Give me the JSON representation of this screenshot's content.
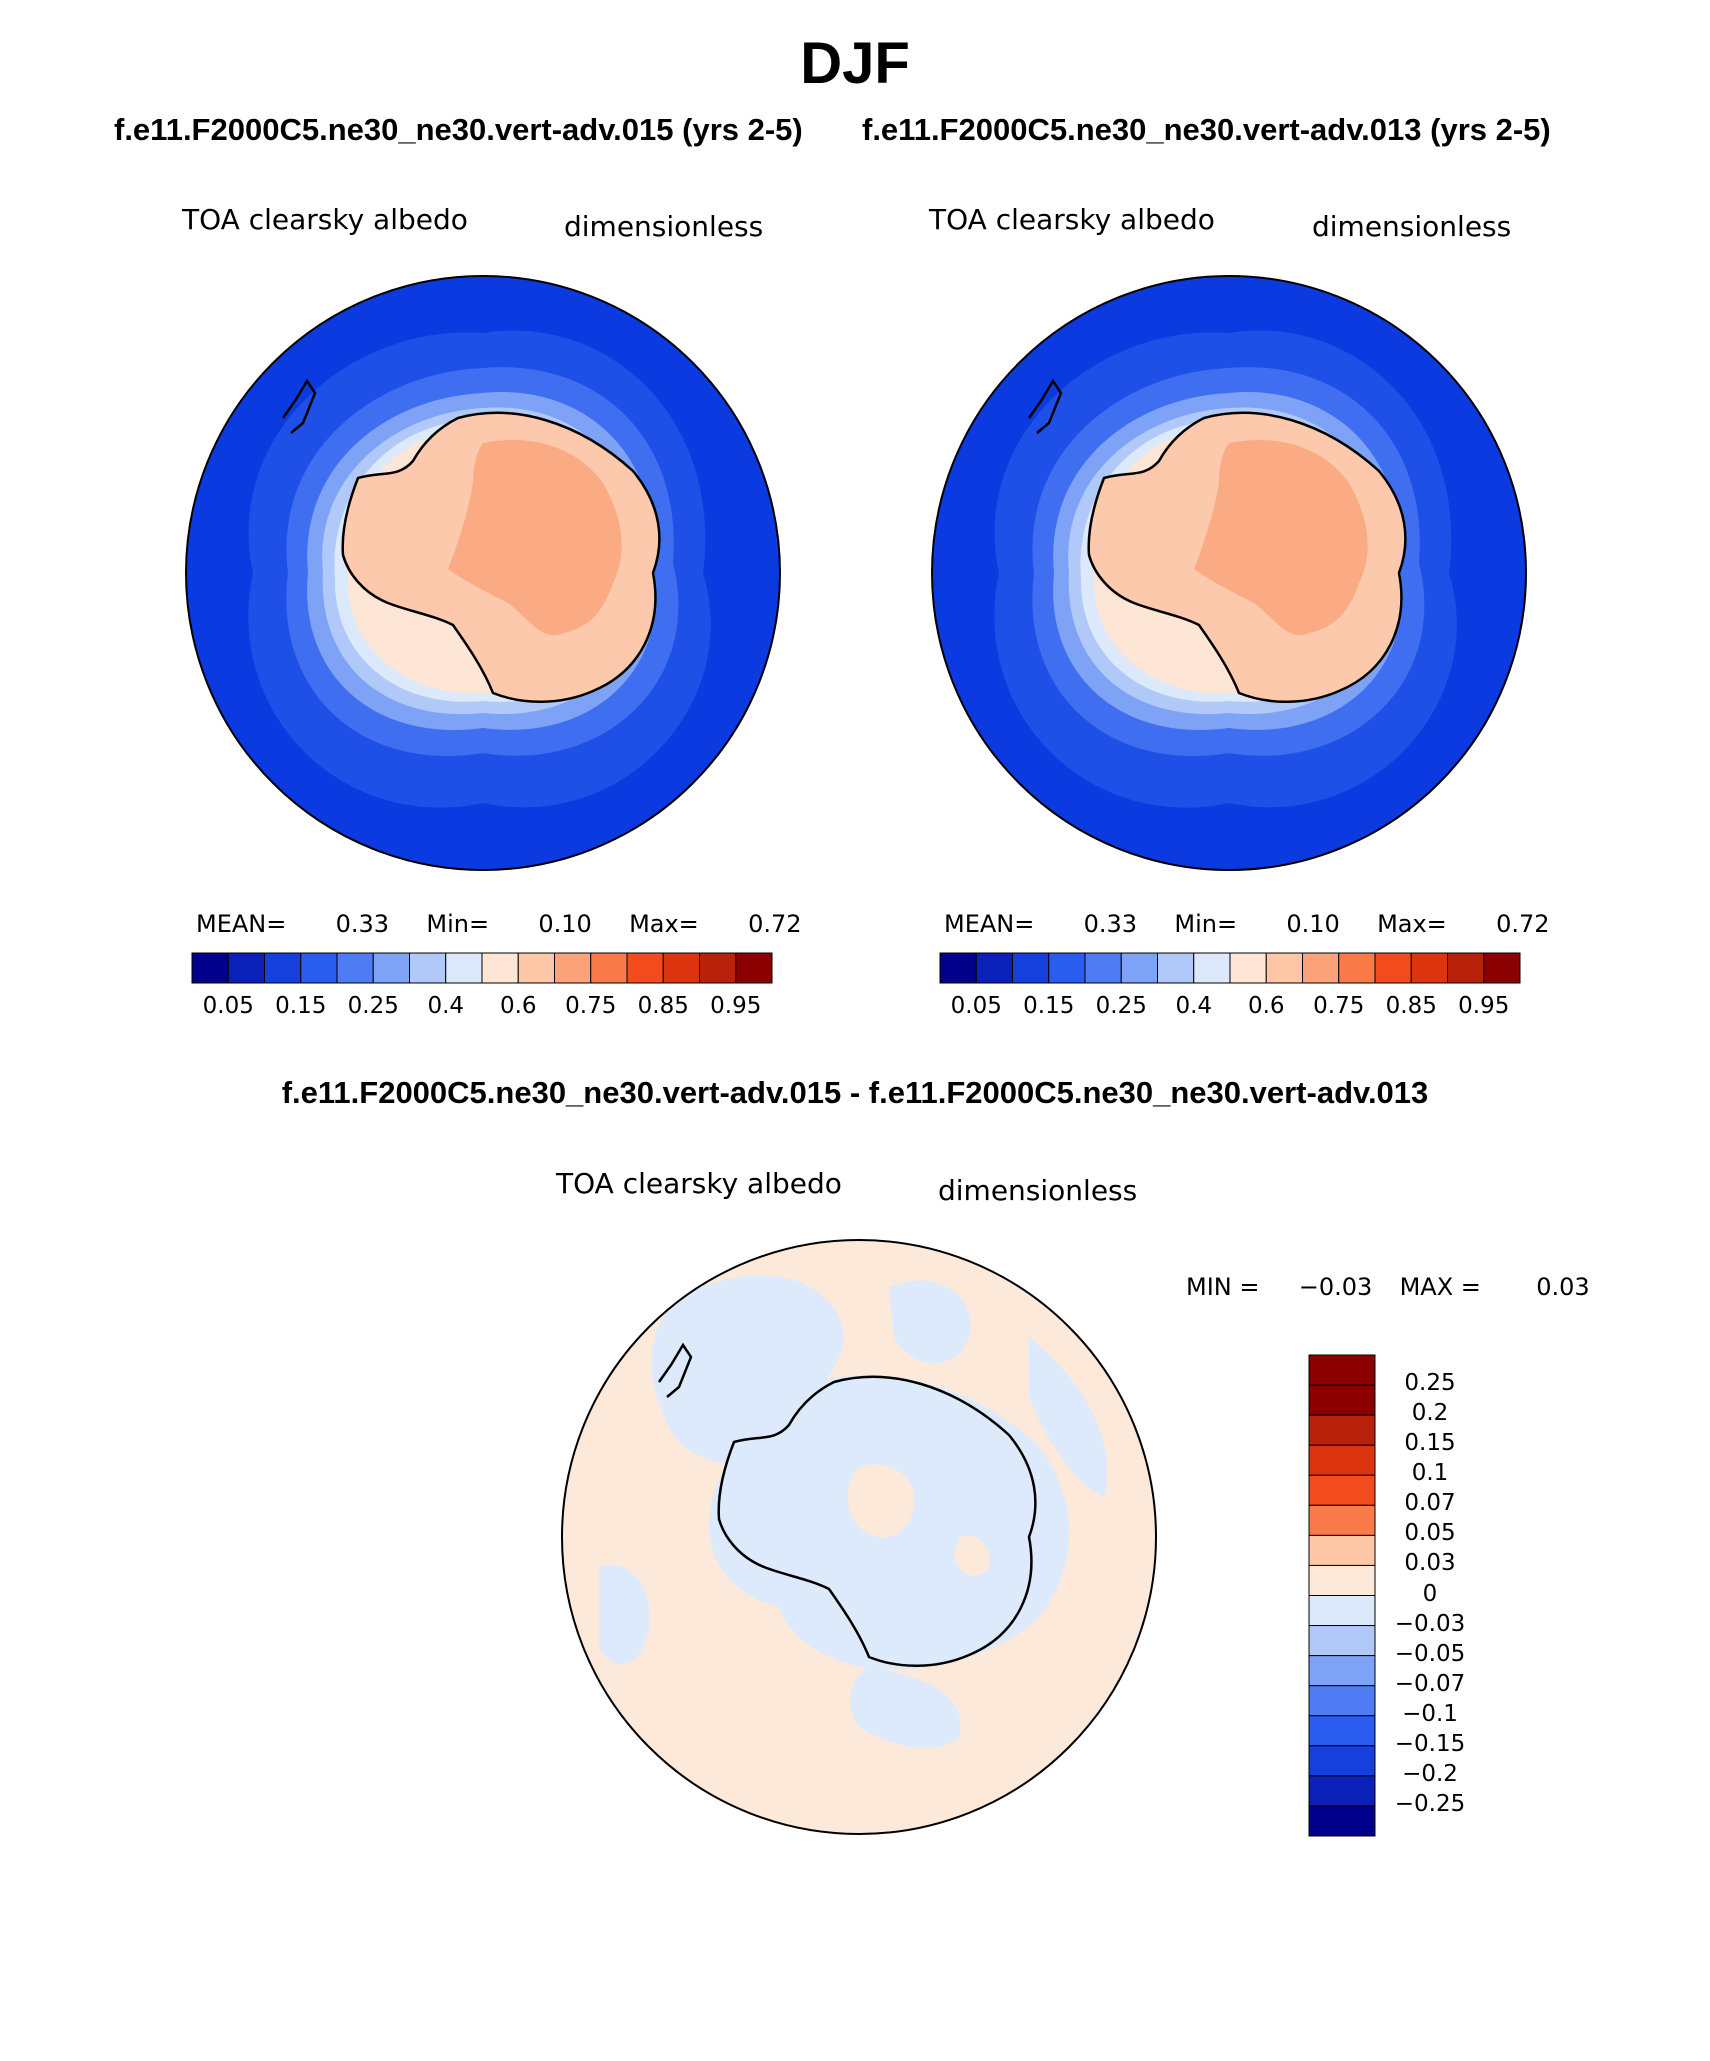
{
  "title": "DJF",
  "case_titles": {
    "left": "f.e11.F2000C5.ne30_ne30.vert-adv.015 (yrs 2-5)",
    "right": "f.e11.F2000C5.ne30_ne30.vert-adv.013 (yrs 2-5)"
  },
  "diff_title": "f.e11.F2000C5.ne30_ne30.vert-adv.015 - f.e11.F2000C5.ne30_ne30.vert-adv.013",
  "panels": [
    {
      "variable": "TOA clearsky albedo",
      "units": "dimensionless",
      "stats": {
        "mean_label": "MEAN=",
        "mean": "0.33",
        "min_label": "Min=",
        "min": "0.10",
        "max_label": "Max=",
        "max": "0.72"
      }
    },
    {
      "variable": "TOA clearsky albedo",
      "units": "dimensionless",
      "stats": {
        "mean_label": "MEAN=",
        "mean": "0.33",
        "min_label": "Min=",
        "min": "0.10",
        "max_label": "Max=",
        "max": "0.72"
      }
    }
  ],
  "diff_panel": {
    "variable": "TOA clearsky albedo",
    "units": "dimensionless",
    "stats": {
      "min_label": "MIN =",
      "min": "−0.03",
      "max_label": "MAX =",
      "max": "0.03"
    }
  },
  "colorbar_abs": {
    "colors": [
      "#00008b",
      "#0a20b8",
      "#1640dc",
      "#2a5cf0",
      "#4f7cf3",
      "#7ea3f6",
      "#b0c9f8",
      "#dce9fb",
      "#fde6d5",
      "#fcc6a7",
      "#fca27b",
      "#fb7a4a",
      "#f44b1e",
      "#dd3410",
      "#b8220b",
      "#8b0000"
    ],
    "tick_labels": [
      "0.05",
      "0.15",
      "0.25",
      "0.4",
      "0.6",
      "0.75",
      "0.85",
      "0.95"
    ]
  },
  "colorbar_diff": {
    "colors": [
      "#8b0000",
      "#b8220b",
      "#dd3410",
      "#f44b1e",
      "#fb7a4a",
      "#fcc6a7",
      "#fde9d9",
      "#dce9fb",
      "#b0c9f8",
      "#7ea3f6",
      "#4f7cf3",
      "#2a5cf0",
      "#1640dc",
      "#0a20b8",
      "#00008b"
    ],
    "tick_labels": [
      "0.25",
      "0.2",
      "0.15",
      "0.1",
      "0.07",
      "0.05",
      "0.03",
      "0",
      "−0.03",
      "−0.05",
      "−0.07",
      "−0.1",
      "−0.15",
      "−0.2",
      "−0.25"
    ]
  },
  "map_colors": {
    "ocean": "#0a3ae0",
    "ocean_2": "#1e50e8",
    "band_1": "#3f6ef0",
    "band_2": "#7ea3f6",
    "band_3": "#b0c9f8",
    "band_4": "#dce9fb",
    "coast_zone": "#fde6d5",
    "land": "#fcc9ad",
    "interior": "#fbab84",
    "diff_positive": "#fde9d9",
    "diff_negative": "#dceafc"
  }
}
